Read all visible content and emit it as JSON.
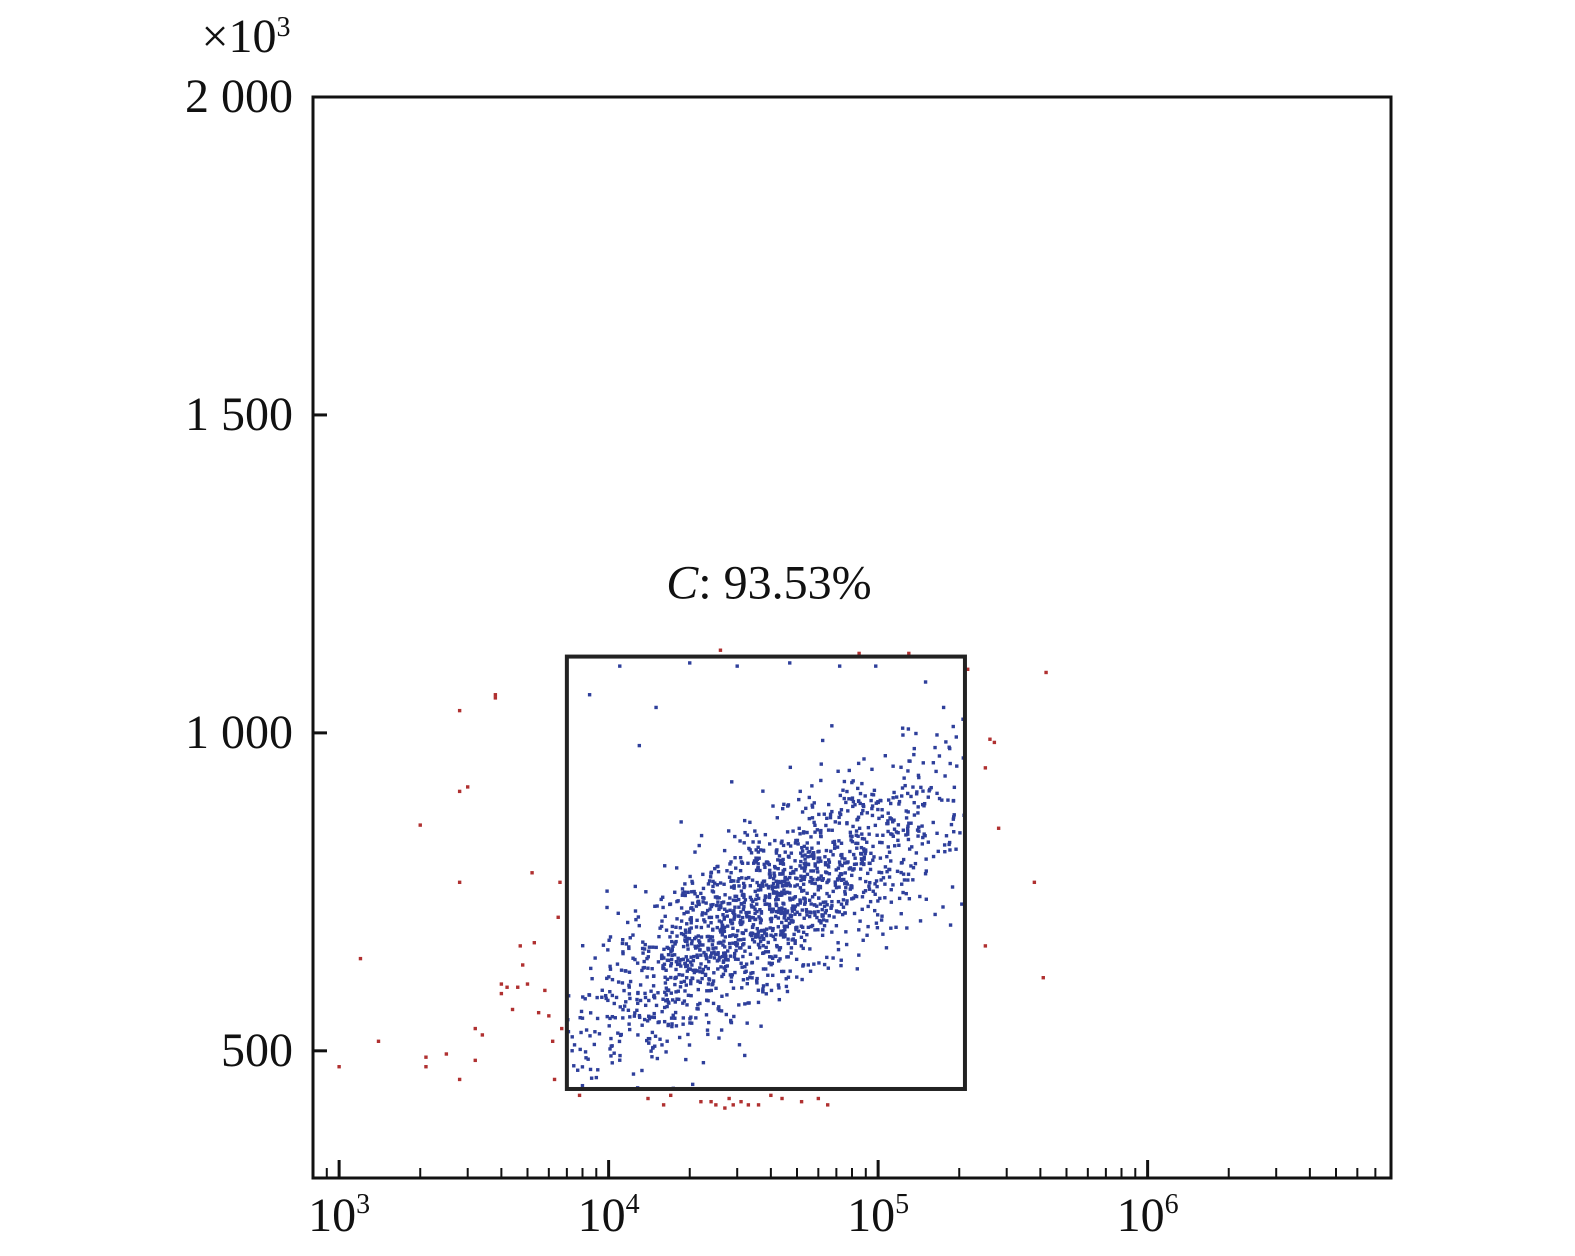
{
  "chart_data": {
    "type": "scatter",
    "title": "",
    "xlabel": "",
    "ylabel": "",
    "x_scale": "log",
    "y_scale": "linear",
    "xlim": [
      800,
      8000000
    ],
    "ylim": [
      300000,
      2000000
    ],
    "y_multiplier_label": {
      "prefix": "×10",
      "exponent": "3"
    },
    "x_ticks": [
      {
        "value": 1000,
        "base": "10",
        "exponent": "3"
      },
      {
        "value": 10000,
        "base": "10",
        "exponent": "4"
      },
      {
        "value": 100000,
        "base": "10",
        "exponent": "5"
      },
      {
        "value": 1000000,
        "base": "10",
        "exponent": "6"
      }
    ],
    "y_ticks": [
      {
        "value": 500000,
        "label": "500"
      },
      {
        "value": 1000000,
        "label": "1 000"
      },
      {
        "value": 1500000,
        "label": "1 500"
      },
      {
        "value": 2000000,
        "label": "2 000"
      }
    ],
    "grid": false,
    "legend": "none",
    "gate": {
      "name": "C",
      "percent": "93.53%",
      "x_range": [
        7000,
        210000
      ],
      "y_range": [
        440000,
        1120000
      ]
    },
    "series": [
      {
        "inside_gate_color": "#2e3f9b",
        "outside_gate_color": "#b03030",
        "points_visible_count_estimate": 2000
      }
    ],
    "points": [
      [
        1000,
        475000
      ],
      [
        1200,
        645000
      ],
      [
        1400,
        515000
      ],
      [
        2000,
        855000
      ],
      [
        2100,
        490000
      ],
      [
        2100,
        475000
      ],
      [
        2500,
        495000
      ],
      [
        2800,
        455000
      ],
      [
        2800,
        765000
      ],
      [
        2800,
        908000
      ],
      [
        2800,
        1035000
      ],
      [
        3000,
        915000
      ],
      [
        3200,
        535000
      ],
      [
        3200,
        485000
      ],
      [
        3400,
        525000
      ],
      [
        3800,
        1060000
      ],
      [
        3800,
        1055000
      ],
      [
        4000,
        605000
      ],
      [
        4000,
        590000
      ],
      [
        4200,
        600000
      ],
      [
        4400,
        565000
      ],
      [
        4600,
        600000
      ],
      [
        4700,
        665000
      ],
      [
        4800,
        635000
      ],
      [
        5000,
        605000
      ],
      [
        5200,
        780000
      ],
      [
        5300,
        670000
      ],
      [
        5500,
        560000
      ],
      [
        5800,
        595000
      ],
      [
        6000,
        555000
      ],
      [
        6200,
        515000
      ],
      [
        6300,
        455000
      ],
      [
        6500,
        710000
      ],
      [
        6600,
        765000
      ],
      [
        6700,
        535000
      ],
      [
        7800,
        430000
      ],
      [
        14000,
        425000
      ],
      [
        16000,
        415000
      ],
      [
        17000,
        430000
      ],
      [
        22000,
        420000
      ],
      [
        24000,
        420000
      ],
      [
        25000,
        415000
      ],
      [
        26000,
        1130000
      ],
      [
        27000,
        410000
      ],
      [
        28000,
        425000
      ],
      [
        29000,
        415000
      ],
      [
        31000,
        420000
      ],
      [
        33000,
        415000
      ],
      [
        36000,
        415000
      ],
      [
        40000,
        430000
      ],
      [
        44000,
        425000
      ],
      [
        52000,
        420000
      ],
      [
        60000,
        425000
      ],
      [
        65000,
        415000
      ],
      [
        85000,
        1125000
      ],
      [
        130000,
        1125000
      ],
      [
        210000,
        1105000
      ],
      [
        260000,
        990000
      ],
      [
        270000,
        985000
      ],
      [
        250000,
        945000
      ],
      [
        280000,
        850000
      ],
      [
        380000,
        765000
      ],
      [
        410000,
        615000
      ],
      [
        250000,
        665000
      ],
      [
        420000,
        1095000
      ],
      [
        215000,
        1100000
      ]
    ]
  }
}
